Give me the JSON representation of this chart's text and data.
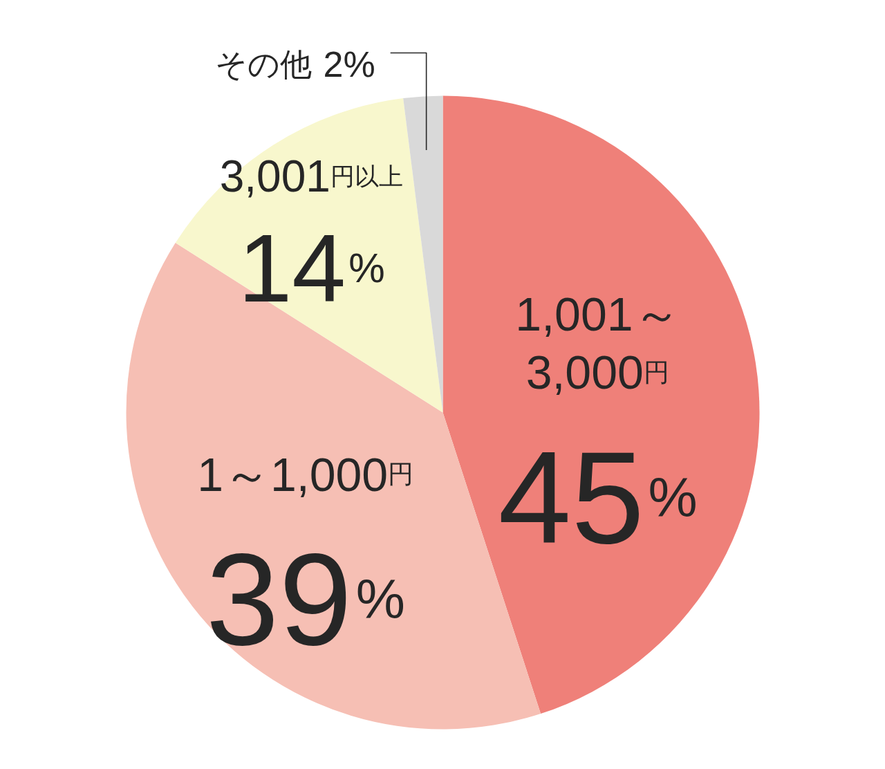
{
  "chart_data": {
    "type": "pie",
    "categories": [
      "1,001～\n3,000円",
      "1～1,000円",
      "3,001円以上",
      "その他"
    ],
    "values": [
      45,
      39,
      14,
      2
    ],
    "colors": [
      "#ef8079",
      "#f6bfb4",
      "#f8f7cd",
      "#d9d9d9"
    ],
    "value_labels": [
      "45%",
      "39%",
      "14%",
      "2%"
    ]
  }
}
